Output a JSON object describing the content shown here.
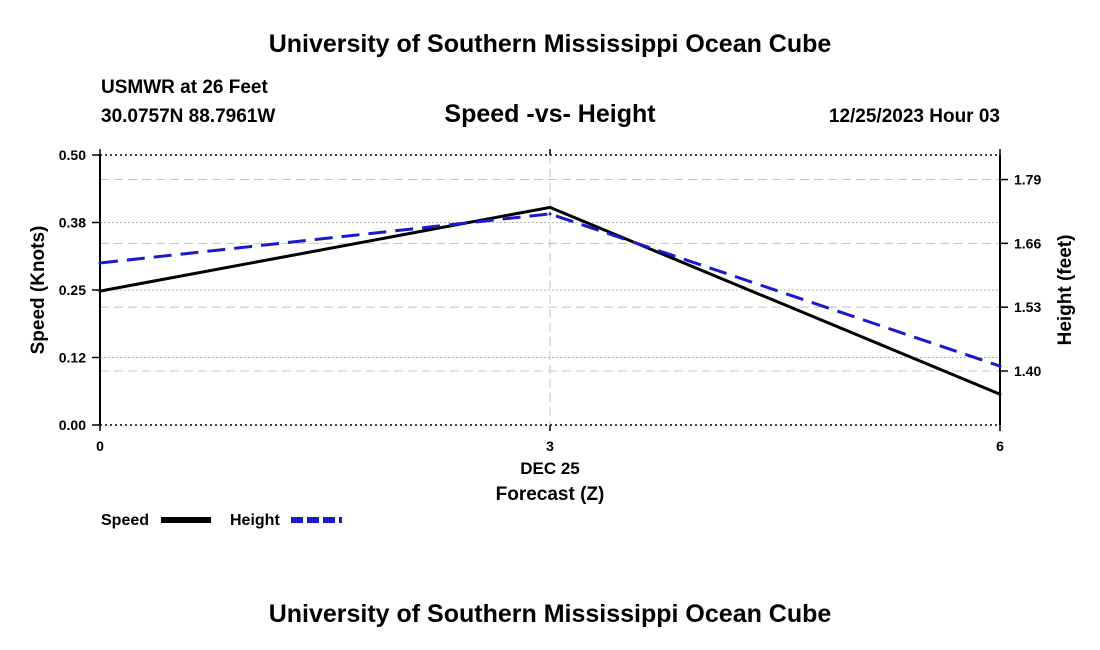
{
  "page": {
    "top_title": "University of Southern Mississippi Ocean Cube",
    "bottom_title": "University of Southern Mississippi Ocean Cube",
    "station_name": "USMWR at 26 Feet",
    "station_coords": "30.0757N  88.7961W",
    "date_label": "12/25/2023 Hour 03"
  },
  "chart_data": {
    "type": "line",
    "title": "Speed -vs- Height",
    "xlabel": "Forecast (Z)",
    "x_date_label": "DEC 25",
    "ylabel": "Speed (Knots)",
    "y2label": "Height (feet)",
    "x": [
      0,
      3,
      6
    ],
    "x_ticks": [
      0,
      3,
      6
    ],
    "x_tick_labels": [
      "0",
      "3",
      "6"
    ],
    "xlim": [
      0,
      6
    ],
    "ylim": [
      0.0,
      0.5
    ],
    "y_ticks": [
      0.0,
      0.125,
      0.25,
      0.375,
      0.5
    ],
    "y_tick_labels": [
      "0.00",
      "0.12",
      "0.25",
      "0.38",
      "0.50"
    ],
    "y2lim": [
      1.29,
      1.84
    ],
    "y2_ticks": [
      1.4,
      1.53,
      1.66,
      1.79
    ],
    "y2_tick_labels": [
      "1.40",
      "1.53",
      "1.66",
      "1.79"
    ],
    "grid": true,
    "legend_position": "bottom-left",
    "series": [
      {
        "name": "Speed",
        "axis": "left",
        "values": [
          0.248,
          0.403,
          0.057
        ],
        "color": "#000000",
        "style": "solid"
      },
      {
        "name": "Height",
        "axis": "right",
        "values": [
          1.62,
          1.72,
          1.41
        ],
        "color": "#1a1acc",
        "style": "dashed"
      }
    ]
  }
}
